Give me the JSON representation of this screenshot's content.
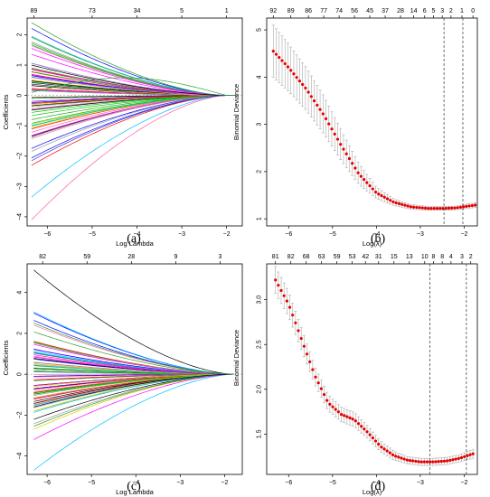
{
  "panels": [
    {
      "id": "a",
      "type": "coefficient_path",
      "caption": "(a)",
      "xlabel": "Log Lambda",
      "ylabel": "Coefficients",
      "xlim": [
        -6.45,
        -1.65
      ],
      "ylim": [
        -4.3,
        2.55
      ],
      "xticks": [
        -6,
        -5,
        -4,
        -3,
        -2
      ],
      "yticks": [
        -4,
        -3,
        -2,
        -1,
        0,
        1,
        2
      ],
      "top_axis": {
        "positions": [
          -6.3,
          -5.0,
          -4.0,
          -3.0,
          -2.0
        ],
        "labels": [
          "89",
          "73",
          "34",
          "5",
          "1"
        ]
      },
      "path_x_range": [
        -6.35,
        -1.8
      ],
      "path_zero_by": -2.0,
      "path_count": 70,
      "coef_start_range": [
        -4.1,
        2.4
      ],
      "coef_paths": [
        {
          "start": 2.4,
          "peak": 0.0,
          "color": "#2ca02c"
        },
        {
          "start": 1.95,
          "peak": 0.0,
          "color": "#00bfbf"
        },
        {
          "start": 1.55,
          "peak": 0.0,
          "color": "#ff00ff"
        },
        {
          "start": 1.0,
          "peak": 0.0,
          "color": "#000000"
        },
        {
          "start": -3.35,
          "peak": 0.0,
          "color": "#00bfff"
        },
        {
          "start": -4.1,
          "peak": 0.0,
          "color": "#ff5fa0"
        },
        {
          "start": -2.15,
          "peak": 0.0,
          "color": "#3c3cc8"
        },
        {
          "start": 0.1,
          "peak": 0.55,
          "color": "#2ca02c"
        }
      ]
    },
    {
      "id": "b",
      "type": "cv_deviance",
      "caption": "(b)",
      "xlabel": "Log(λ)",
      "ylabel": "Binomial Deviance",
      "xlim": [
        -6.5,
        -1.7
      ],
      "ylim": [
        0.85,
        5.25
      ],
      "xticks": [
        -6,
        -5,
        -4,
        -3,
        -2
      ],
      "yticks": [
        1,
        2,
        3,
        4,
        5
      ],
      "top_axis": {
        "positions": [
          -6.35,
          -5.95,
          -5.55,
          -5.2,
          -4.85,
          -4.5,
          -4.15,
          -3.8,
          -3.45,
          -3.15,
          -2.9,
          -2.7,
          -2.5,
          -2.3,
          -2.05,
          -1.8
        ],
        "labels": [
          "92",
          "89",
          "86",
          "77",
          "74",
          "56",
          "45",
          "37",
          "28",
          "14",
          "6",
          "5",
          "3",
          "2",
          "1",
          "0"
        ]
      },
      "vlines": [
        -2.46,
        -2.03
      ],
      "cv_curve": {
        "log_lambda": [
          -6.35,
          -6.0,
          -5.6,
          -5.2,
          -4.8,
          -4.4,
          -4.0,
          -3.6,
          -3.2,
          -2.8,
          -2.5,
          -2.2,
          -1.9,
          -1.75
        ],
        "deviance": [
          4.55,
          4.2,
          3.75,
          3.2,
          2.55,
          1.95,
          1.55,
          1.35,
          1.25,
          1.22,
          1.22,
          1.23,
          1.27,
          1.29
        ],
        "error_halfwidth": [
          0.55,
          0.5,
          0.45,
          0.4,
          0.32,
          0.22,
          0.12,
          0.07,
          0.05,
          0.04,
          0.04,
          0.04,
          0.05,
          0.05
        ]
      },
      "point_color": "#e60000",
      "errorbar_color": "#aaaaaa"
    },
    {
      "id": "c",
      "type": "coefficient_path",
      "caption": "(c)",
      "xlabel": "Log Lambda",
      "ylabel": "Coefficients",
      "xlim": [
        -6.45,
        -1.6
      ],
      "ylim": [
        -4.9,
        5.4
      ],
      "xticks": [
        -6,
        -5,
        -4,
        -3,
        -2
      ],
      "yticks": [
        -4,
        -2,
        0,
        2,
        4
      ],
      "top_axis": {
        "positions": [
          -6.1,
          -5.1,
          -4.1,
          -3.1,
          -2.1
        ],
        "labels": [
          "82",
          "59",
          "28",
          "9",
          "3"
        ]
      },
      "path_x_range": [
        -6.3,
        -1.8
      ],
      "path_zero_by": -1.8,
      "path_count": 70,
      "coef_start_range": [
        -4.7,
        5.1
      ],
      "coef_paths": [
        {
          "start": 5.1,
          "peak": 0.0,
          "color": "#000000"
        },
        {
          "start": 3.05,
          "peak": 0.0,
          "color": "#00bfff"
        },
        {
          "start": -4.7,
          "peak": 0.0,
          "color": "#00bfff"
        },
        {
          "start": -3.2,
          "peak": 0.0,
          "color": "#ff00ff"
        },
        {
          "start": -1.6,
          "peak": 0.0,
          "color": "#000000"
        },
        {
          "start": 2.5,
          "peak": 0.0,
          "color": "#2ca02c"
        }
      ]
    },
    {
      "id": "d",
      "type": "cv_deviance",
      "caption": "(d)",
      "xlabel": "Log(λ)",
      "ylabel": "Binomial Deviance",
      "xlim": [
        -6.5,
        -1.7
      ],
      "ylim": [
        1.05,
        3.4
      ],
      "xticks": [
        -6,
        -5,
        -4,
        -3,
        -2
      ],
      "yticks": [
        1.5,
        2.0,
        2.5,
        3.0
      ],
      "top_axis": {
        "positions": [
          -6.3,
          -5.95,
          -5.6,
          -5.25,
          -4.9,
          -4.55,
          -4.25,
          -3.95,
          -3.6,
          -3.25,
          -2.9,
          -2.7,
          -2.5,
          -2.3,
          -2.05,
          -1.85
        ],
        "labels": [
          "81",
          "82",
          "68",
          "63",
          "59",
          "53",
          "42",
          "31",
          "15",
          "13",
          "10",
          "8",
          "8",
          "4",
          "3",
          "2"
        ]
      },
      "vlines": [
        -2.78,
        -1.95
      ],
      "cv_curve": {
        "log_lambda": [
          -6.3,
          -6.0,
          -5.7,
          -5.4,
          -5.1,
          -4.8,
          -4.5,
          -4.2,
          -3.9,
          -3.6,
          -3.3,
          -3.0,
          -2.7,
          -2.4,
          -2.1,
          -1.8
        ],
        "deviance": [
          3.22,
          2.95,
          2.55,
          2.15,
          1.85,
          1.72,
          1.66,
          1.52,
          1.36,
          1.26,
          1.21,
          1.19,
          1.19,
          1.2,
          1.23,
          1.28
        ],
        "error_halfwidth": [
          0.15,
          0.14,
          0.12,
          0.1,
          0.09,
          0.08,
          0.08,
          0.07,
          0.06,
          0.05,
          0.04,
          0.04,
          0.04,
          0.04,
          0.04,
          0.05
        ]
      },
      "point_color": "#e60000",
      "errorbar_color": "#aaaaaa"
    }
  ],
  "palette": [
    "#000000",
    "#ff0000",
    "#00cd00",
    "#0000ff",
    "#00bfff",
    "#ff00ff",
    "#e6c800",
    "#999999",
    "#ff69b4",
    "#2ca02c"
  ]
}
